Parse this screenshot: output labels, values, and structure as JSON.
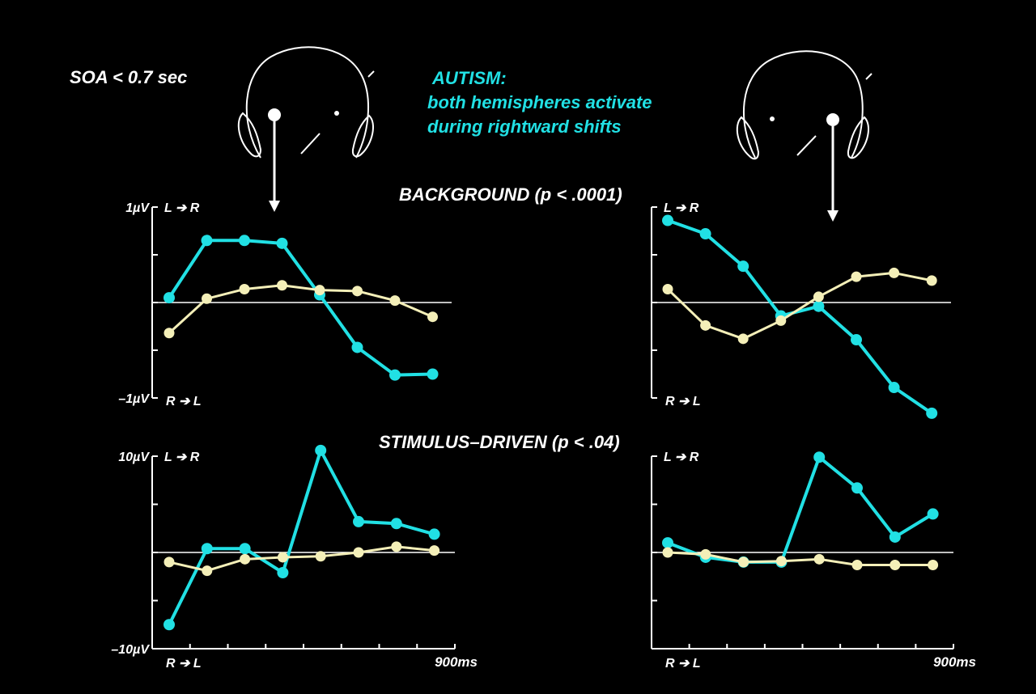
{
  "soa_label": "SOA < 0.7 sec",
  "annotation": {
    "line1": "AUTISM:",
    "line2": "both hemispheres activate",
    "line3": "during rightward shifts"
  },
  "colors": {
    "autism": "#21e0e4",
    "control": "#f4efb8",
    "background": "#000000",
    "axis": "#ffffff"
  },
  "icons": [
    "head-left-electrode-icon",
    "head-right-electrode-icon",
    "down-arrow-icon"
  ],
  "chart_data": [
    {
      "id": "bg-left",
      "type": "line",
      "title": "BACKGROUND (p < .0001)",
      "ylim": [
        -1,
        1
      ],
      "ytick_top": "1µV",
      "ytick_bottom": "–1µV",
      "direction_top": "L ➔ R",
      "direction_bottom": "R ➔ L",
      "xlabel_end": "",
      "x": [
        0,
        1,
        2,
        3,
        4,
        5,
        6,
        7
      ],
      "series": [
        {
          "color_key": "autism",
          "values": [
            0.05,
            0.65,
            0.65,
            0.62,
            0.08,
            -0.47,
            -0.76,
            -0.75
          ]
        },
        {
          "color_key": "control",
          "values": [
            -0.32,
            0.04,
            0.14,
            0.18,
            0.13,
            0.12,
            0.02,
            -0.15
          ]
        }
      ]
    },
    {
      "id": "bg-right",
      "type": "line",
      "title": "",
      "ylim": [
        -1,
        1
      ],
      "ytick_top": "",
      "ytick_bottom": "",
      "direction_top": "L ➔ R",
      "direction_bottom": "R ➔ L",
      "xlabel_end": "",
      "x": [
        0,
        1,
        2,
        3,
        4,
        5,
        6,
        7
      ],
      "series": [
        {
          "color_key": "autism",
          "values": [
            0.86,
            0.72,
            0.38,
            -0.14,
            -0.04,
            -0.39,
            -0.89,
            -1.16
          ]
        },
        {
          "color_key": "control",
          "values": [
            0.14,
            -0.24,
            -0.38,
            -0.19,
            0.06,
            0.27,
            0.31,
            0.23
          ]
        }
      ]
    },
    {
      "id": "st-left",
      "type": "line",
      "title": "STIMULUS–DRIVEN (p < .04)",
      "ylim": [
        -10,
        10
      ],
      "ytick_top": "10µV",
      "ytick_bottom": "–10µV",
      "direction_top": "L ➔ R",
      "direction_bottom": "R ➔ L",
      "xlabel_end": "900ms",
      "x": [
        0,
        1,
        2,
        3,
        4,
        5,
        6,
        7
      ],
      "series": [
        {
          "color_key": "autism",
          "values": [
            -7.5,
            0.4,
            0.4,
            -2.1,
            10.6,
            3.2,
            3.0,
            1.9
          ]
        },
        {
          "color_key": "control",
          "values": [
            -1.0,
            -1.9,
            -0.7,
            -0.5,
            -0.4,
            0.0,
            0.6,
            0.2
          ]
        }
      ]
    },
    {
      "id": "st-right",
      "type": "line",
      "title": "",
      "ylim": [
        -10,
        10
      ],
      "ytick_top": "",
      "ytick_bottom": "",
      "direction_top": "L ➔ R",
      "direction_bottom": "R ➔ L",
      "xlabel_end": "900ms",
      "x": [
        0,
        1,
        2,
        3,
        4,
        5,
        6,
        7
      ],
      "series": [
        {
          "color_key": "autism",
          "values": [
            1.0,
            -0.5,
            -1.0,
            -1.0,
            9.9,
            6.7,
            1.6,
            4.0
          ]
        },
        {
          "color_key": "control",
          "values": [
            0.0,
            -0.2,
            -1.0,
            -0.9,
            -0.7,
            -1.3,
            -1.3,
            -1.3
          ]
        }
      ]
    }
  ]
}
